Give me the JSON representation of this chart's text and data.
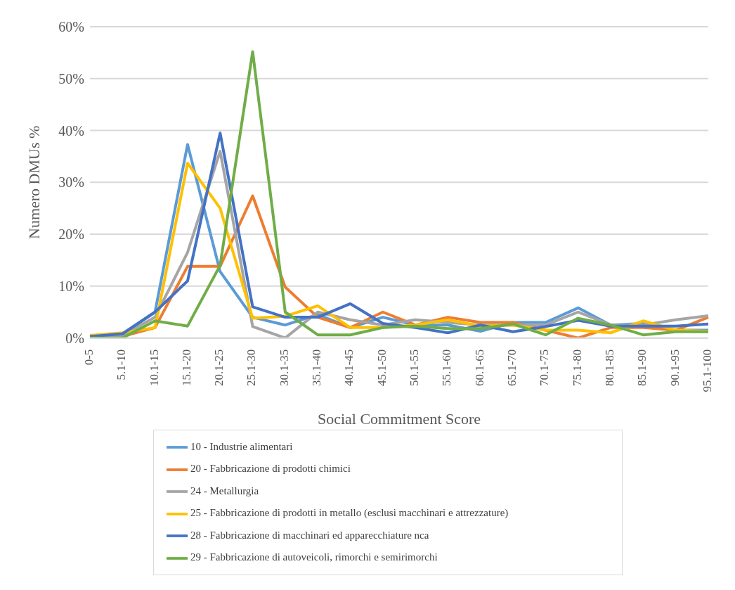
{
  "chart_data": {
    "type": "line",
    "xlabel": "Social Commitment Score",
    "ylabel": "Numero DMUs %",
    "categories": [
      "0-5",
      "5.1-10",
      "10.1-15",
      "15.1-20",
      "20.1-25",
      "25.1-30",
      "30.1-35",
      "35.1-40",
      "40.1-45",
      "45.1-50",
      "50.1-55",
      "55.1-60",
      "60.1-65",
      "65.1-70",
      "70.1-75",
      "75.1-80",
      "80.1-85",
      "85.1-90",
      "90.1-95",
      "95.1-100"
    ],
    "series": [
      {
        "name": "10 - Industrie alimentari",
        "color": "#5b9bd5",
        "values": [
          0.3,
          0.8,
          5,
          37.3,
          12.8,
          4,
          2.5,
          4.5,
          2,
          4,
          2.5,
          2.5,
          1.3,
          3,
          3,
          5.8,
          2.5,
          2.8,
          1.5,
          1.5
        ]
      },
      {
        "name": "20 - Fabbricazione di prodotti chimici",
        "color": "#ed7d31",
        "values": [
          0.3,
          0.3,
          2,
          13.8,
          13.8,
          27.4,
          9.8,
          4,
          2,
          5,
          2.5,
          4,
          3,
          3,
          1.5,
          0,
          2,
          2,
          1.5,
          4
        ]
      },
      {
        "name": "24 - Metallurgia",
        "color": "#a5a5a5",
        "values": [
          0,
          0.5,
          4,
          16.5,
          36,
          2.2,
          0,
          5,
          3.5,
          2.5,
          3.5,
          3,
          2.5,
          2.5,
          2.5,
          5,
          2.5,
          2.5,
          3.5,
          4.3
        ]
      },
      {
        "name": "25 - Fabbricazione di prodotti in metallo (esclusi macchinari e attrezzature)",
        "color": "#ffc000",
        "values": [
          0.5,
          1,
          2,
          33.7,
          25,
          3.8,
          4.2,
          6.2,
          2,
          2,
          2.5,
          3.5,
          2.3,
          2.5,
          1.5,
          1.5,
          1,
          3.3,
          1.5,
          1.3
        ]
      },
      {
        "name": "28 - Fabbricazione di macchinari ed apparecchiature nca",
        "color": "#4472c4",
        "values": [
          0.3,
          0.8,
          5,
          11,
          39.5,
          6,
          4,
          4,
          6.6,
          2.8,
          2,
          1,
          2.5,
          1.2,
          2.2,
          3.4,
          2.3,
          2.3,
          2.3,
          2.7
        ]
      },
      {
        "name": "29 - Fabbricazione di autoveicoli, rimorchi e semirimorchi",
        "color": "#70ad47",
        "values": [
          0,
          0,
          3.3,
          2.3,
          14,
          55.2,
          5,
          0.6,
          0.6,
          2,
          2.3,
          1.8,
          1.8,
          2.7,
          0.6,
          3.8,
          2.5,
          0.6,
          1.2,
          1.2
        ]
      }
    ],
    "ylim": [
      0,
      60
    ],
    "yticks": [
      {
        "value": 0,
        "label": "0%"
      },
      {
        "value": 10,
        "label": "10%"
      },
      {
        "value": 20,
        "label": "20%"
      },
      {
        "value": 30,
        "label": "30%"
      },
      {
        "value": 40,
        "label": "40%"
      },
      {
        "value": 50,
        "label": "50%"
      },
      {
        "value": 60,
        "label": "60%"
      }
    ],
    "grid": "y",
    "legend": "bottom",
    "marker": "none",
    "line_style": "solid"
  }
}
